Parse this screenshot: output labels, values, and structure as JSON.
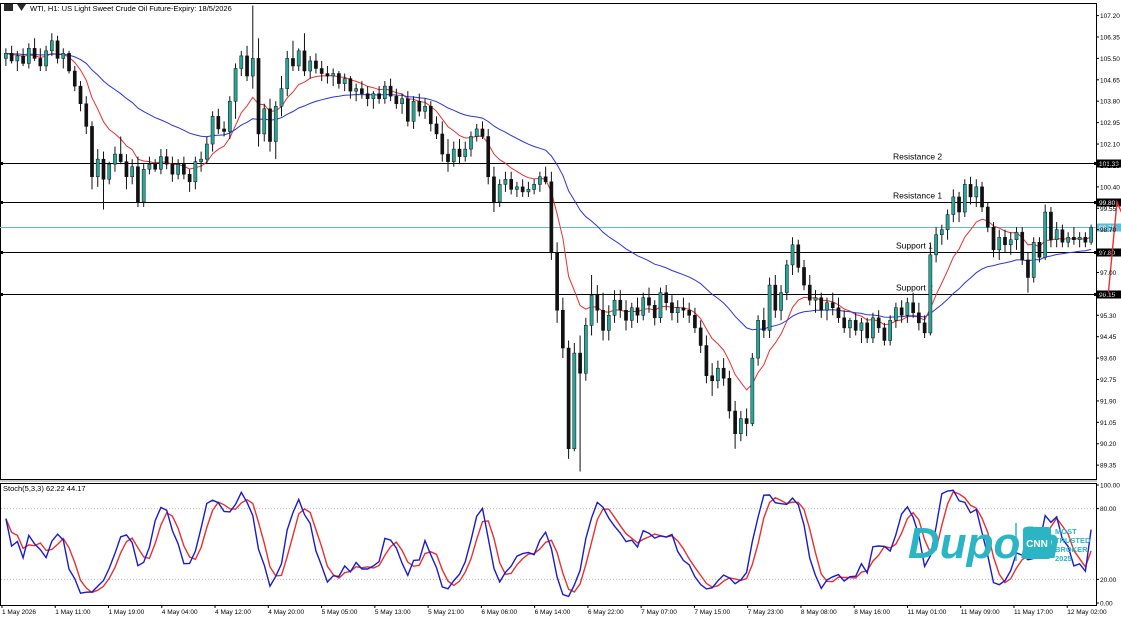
{
  "header": {
    "title": "WTI, H1: US Light Sweet Crude Oil Future-Expiry: 18/5/2026",
    "stoch_title": "Stoch(5,3,3) 62.22 44.17"
  },
  "watermark": {
    "brand": "Dupoin",
    "badge_text": "CNN",
    "award_lines": [
      "MOST",
      "TRUSTED",
      "BROKER",
      "2025"
    ],
    "color": "#2bb5c4"
  },
  "colors": {
    "bull": "#26a69a",
    "bear": "#111111",
    "ma_fast": "#e8312f",
    "ma_slow": "#2a35e0",
    "current_line": "#5fbcd3",
    "stoch_k": "#1a1ad0",
    "stoch_d": "#e8312f"
  },
  "chart_data": {
    "type": "candlestick",
    "title": "WTI, H1: US Light Sweet Crude Oil Future-Expiry: 18/5/2026",
    "ylim": [
      88.8,
      107.7
    ],
    "y_ticks": [
      "107.20",
      "106.35",
      "105.50",
      "104.65",
      "103.80",
      "102.95",
      "102.10",
      "101.25",
      "100.40",
      "99.55",
      "98.70",
      "97.80",
      "97.00",
      "96.15",
      "95.30",
      "94.45",
      "93.60",
      "92.75",
      "91.90",
      "91.05",
      "90.20",
      "89.35"
    ],
    "x_ticks": [
      "1 May 2026",
      "1 May 11:00",
      "1 May 19:00",
      "4 May 04:00",
      "4 May 12:00",
      "4 May 20:00",
      "5 May 05:00",
      "5 May 13:00",
      "5 May 21:00",
      "6 May 06:00",
      "6 May 14:00",
      "6 May 22:00",
      "7 May 07:00",
      "7 May 15:00",
      "7 May 23:00",
      "8 May 08:00",
      "8 May 16:00",
      "11 May 01:00",
      "11 May 09:00",
      "11 May 17:00",
      "12 May 02:00"
    ],
    "levels": [
      {
        "label": "Resistance 2",
        "value": 101.33,
        "tag": "101.33"
      },
      {
        "label": "Resistance 1",
        "value": 99.8,
        "tag": "99.80"
      },
      {
        "label": "Support 1",
        "value": 97.8,
        "tag": "97.80"
      },
      {
        "label": "Support 2",
        "value": 96.15,
        "tag": "96.15"
      }
    ],
    "current_price": {
      "value": 98.79,
      "tag": "98.79"
    },
    "trend_line": [
      [
        192,
        96.2
      ],
      [
        193.5,
        99.8
      ],
      [
        196,
        98.5
      ],
      [
        201,
        101.3
      ]
    ],
    "candles": [
      [
        105.5,
        105.9,
        105.2,
        105.7
      ],
      [
        105.7,
        106.0,
        105.3,
        105.4
      ],
      [
        105.4,
        105.8,
        105.0,
        105.6
      ],
      [
        105.6,
        105.9,
        105.2,
        105.3
      ],
      [
        105.3,
        106.1,
        105.1,
        105.9
      ],
      [
        105.9,
        106.3,
        105.4,
        105.5
      ],
      [
        105.5,
        105.9,
        105.0,
        105.2
      ],
      [
        105.2,
        106.0,
        105.0,
        105.8
      ],
      [
        105.8,
        106.5,
        105.6,
        106.2
      ],
      [
        106.2,
        106.4,
        105.3,
        105.5
      ],
      [
        105.5,
        105.9,
        105.1,
        105.7
      ],
      [
        105.7,
        105.8,
        104.9,
        105.0
      ],
      [
        105.0,
        105.2,
        104.2,
        104.4
      ],
      [
        104.4,
        104.6,
        103.4,
        103.7
      ],
      [
        103.7,
        104.0,
        102.5,
        102.8
      ],
      [
        102.8,
        103.0,
        100.3,
        100.8
      ],
      [
        100.8,
        101.9,
        100.4,
        101.5
      ],
      [
        101.5,
        101.8,
        99.5,
        100.7
      ],
      [
        100.7,
        101.4,
        100.5,
        101.3
      ],
      [
        101.3,
        102.0,
        101.0,
        101.7
      ],
      [
        101.7,
        102.4,
        101.3,
        101.4
      ],
      [
        101.4,
        101.7,
        100.3,
        100.8
      ],
      [
        100.8,
        101.5,
        100.5,
        101.2
      ],
      [
        101.2,
        101.6,
        99.6,
        99.8
      ],
      [
        99.8,
        101.3,
        99.6,
        101.1
      ],
      [
        101.1,
        101.6,
        100.9,
        101.3
      ],
      [
        101.3,
        101.5,
        101.0,
        101.1
      ],
      [
        101.1,
        101.9,
        100.9,
        101.6
      ],
      [
        101.6,
        101.9,
        101.1,
        101.3
      ],
      [
        101.3,
        101.6,
        100.6,
        100.9
      ],
      [
        100.9,
        101.5,
        100.7,
        101.3
      ],
      [
        101.3,
        101.6,
        100.7,
        100.9
      ],
      [
        100.9,
        101.1,
        100.2,
        100.6
      ],
      [
        100.6,
        101.6,
        100.3,
        101.4
      ],
      [
        101.4,
        101.8,
        101.0,
        101.5
      ],
      [
        101.5,
        102.4,
        101.3,
        102.1
      ],
      [
        102.1,
        103.4,
        101.8,
        103.2
      ],
      [
        103.2,
        103.5,
        102.5,
        102.7
      ],
      [
        102.7,
        103.0,
        102.4,
        102.6
      ],
      [
        102.6,
        104.0,
        102.3,
        103.8
      ],
      [
        103.8,
        105.3,
        103.1,
        105.1
      ],
      [
        105.1,
        105.8,
        104.8,
        105.6
      ],
      [
        105.6,
        106.0,
        104.6,
        104.8
      ],
      [
        104.8,
        107.6,
        104.3,
        105.5
      ],
      [
        105.5,
        106.3,
        102.0,
        102.5
      ],
      [
        102.5,
        103.7,
        102.2,
        103.5
      ],
      [
        103.5,
        103.9,
        101.8,
        102.2
      ],
      [
        102.2,
        103.8,
        101.5,
        103.6
      ],
      [
        103.6,
        104.8,
        103.2,
        104.3
      ],
      [
        104.3,
        105.8,
        104.0,
        105.5
      ],
      [
        105.5,
        106.2,
        105.0,
        105.2
      ],
      [
        105.2,
        105.9,
        105.0,
        105.8
      ],
      [
        105.8,
        106.5,
        104.8,
        105.0
      ],
      [
        105.0,
        105.6,
        104.7,
        105.4
      ],
      [
        105.4,
        105.7,
        104.9,
        105.1
      ],
      [
        105.1,
        105.4,
        104.6,
        104.9
      ],
      [
        104.9,
        105.2,
        104.5,
        104.8
      ],
      [
        104.8,
        105.1,
        104.4,
        104.9
      ],
      [
        104.9,
        105.0,
        104.3,
        104.5
      ],
      [
        104.5,
        104.9,
        104.2,
        104.7
      ],
      [
        104.7,
        104.8,
        103.9,
        104.2
      ],
      [
        104.2,
        104.5,
        103.8,
        104.3
      ],
      [
        104.3,
        104.6,
        103.9,
        104.1
      ],
      [
        104.1,
        104.4,
        103.6,
        103.9
      ],
      [
        103.9,
        104.2,
        103.5,
        104.1
      ],
      [
        104.1,
        104.4,
        103.7,
        103.9
      ],
      [
        103.9,
        104.6,
        103.7,
        104.4
      ],
      [
        104.4,
        104.7,
        103.8,
        104.0
      ],
      [
        104.0,
        104.3,
        103.5,
        103.7
      ],
      [
        103.7,
        104.1,
        103.3,
        103.9
      ],
      [
        103.9,
        104.2,
        102.8,
        103.0
      ],
      [
        103.0,
        104.0,
        102.7,
        103.8
      ],
      [
        103.8,
        104.1,
        103.2,
        103.4
      ],
      [
        103.4,
        103.9,
        103.1,
        103.6
      ],
      [
        103.6,
        103.8,
        102.6,
        102.9
      ],
      [
        102.9,
        103.2,
        102.3,
        102.5
      ],
      [
        102.5,
        103.0,
        101.4,
        101.7
      ],
      [
        101.7,
        102.3,
        101.0,
        101.4
      ],
      [
        101.4,
        102.2,
        101.2,
        101.9
      ],
      [
        101.9,
        102.3,
        101.3,
        101.6
      ],
      [
        101.6,
        102.2,
        101.4,
        101.9
      ],
      [
        101.9,
        102.6,
        101.6,
        102.4
      ],
      [
        102.4,
        102.9,
        102.2,
        102.7
      ],
      [
        102.7,
        103.0,
        102.3,
        102.4
      ],
      [
        102.4,
        102.7,
        100.5,
        100.8
      ],
      [
        100.8,
        101.2,
        99.4,
        99.8
      ],
      [
        99.8,
        100.7,
        99.6,
        100.5
      ],
      [
        100.5,
        101.0,
        100.2,
        100.7
      ],
      [
        100.7,
        101.0,
        100.1,
        100.3
      ],
      [
        100.3,
        100.6,
        100.0,
        100.4
      ],
      [
        100.4,
        100.7,
        100.0,
        100.2
      ],
      [
        100.2,
        100.6,
        100.0,
        100.3
      ],
      [
        100.3,
        100.7,
        100.1,
        100.5
      ],
      [
        100.5,
        101.0,
        100.2,
        100.8
      ],
      [
        100.8,
        101.2,
        100.5,
        100.6
      ],
      [
        100.6,
        101.0,
        97.5,
        97.8
      ],
      [
        97.8,
        98.2,
        95.0,
        95.5
      ],
      [
        95.5,
        96.0,
        93.6,
        94.0
      ],
      [
        94.0,
        94.3,
        89.6,
        90.0
      ],
      [
        90.0,
        94.2,
        89.9,
        93.8
      ],
      [
        93.8,
        94.5,
        89.1,
        93.0
      ],
      [
        93.0,
        95.2,
        92.7,
        94.9
      ],
      [
        94.9,
        96.9,
        94.5,
        96.1
      ],
      [
        96.1,
        96.5,
        95.0,
        95.5
      ],
      [
        95.5,
        96.2,
        94.3,
        94.7
      ],
      [
        94.7,
        95.7,
        94.3,
        95.3
      ],
      [
        95.3,
        96.3,
        95.0,
        95.9
      ],
      [
        95.9,
        96.3,
        95.2,
        95.5
      ],
      [
        95.5,
        95.9,
        94.7,
        95.1
      ],
      [
        95.1,
        95.8,
        94.8,
        95.6
      ],
      [
        95.6,
        96.0,
        95.0,
        95.3
      ],
      [
        95.3,
        96.2,
        95.1,
        96.0
      ],
      [
        96.0,
        96.4,
        95.4,
        95.7
      ],
      [
        95.7,
        95.9,
        94.9,
        95.2
      ],
      [
        95.2,
        96.4,
        95.0,
        96.2
      ],
      [
        96.2,
        96.5,
        95.5,
        95.8
      ],
      [
        95.8,
        96.1,
        95.1,
        95.4
      ],
      [
        95.4,
        95.9,
        95.0,
        95.6
      ],
      [
        95.6,
        96.0,
        95.2,
        95.5
      ],
      [
        95.5,
        95.8,
        95.0,
        95.3
      ],
      [
        95.3,
        95.6,
        94.6,
        94.8
      ],
      [
        94.8,
        95.1,
        93.8,
        94.1
      ],
      [
        94.1,
        94.5,
        92.6,
        92.9
      ],
      [
        92.9,
        93.4,
        92.1,
        92.7
      ],
      [
        92.7,
        93.5,
        92.4,
        93.2
      ],
      [
        93.2,
        93.6,
        92.5,
        92.8
      ],
      [
        92.8,
        93.1,
        91.2,
        91.5
      ],
      [
        91.5,
        91.9,
        90.0,
        90.6
      ],
      [
        90.6,
        91.5,
        90.3,
        91.2
      ],
      [
        91.2,
        91.6,
        90.5,
        91.0
      ],
      [
        91.0,
        93.8,
        90.9,
        93.6
      ],
      [
        93.6,
        95.3,
        93.3,
        95.1
      ],
      [
        95.1,
        95.6,
        94.4,
        94.7
      ],
      [
        94.7,
        96.8,
        94.4,
        96.5
      ],
      [
        96.5,
        96.9,
        95.2,
        95.5
      ],
      [
        95.5,
        96.5,
        95.1,
        96.2
      ],
      [
        96.2,
        97.5,
        95.9,
        97.3
      ],
      [
        97.3,
        98.4,
        96.9,
        98.1
      ],
      [
        98.1,
        98.3,
        97.0,
        97.2
      ],
      [
        97.2,
        97.5,
        96.3,
        96.5
      ],
      [
        96.5,
        96.9,
        95.7,
        95.9
      ],
      [
        95.9,
        96.3,
        95.4,
        96.0
      ],
      [
        96.0,
        96.2,
        95.2,
        95.5
      ],
      [
        95.5,
        96.0,
        95.1,
        95.8
      ],
      [
        95.8,
        96.2,
        95.3,
        95.6
      ],
      [
        95.6,
        96.0,
        95.0,
        95.2
      ],
      [
        95.2,
        95.5,
        94.6,
        94.8
      ],
      [
        94.8,
        95.2,
        94.4,
        95.1
      ],
      [
        95.1,
        95.4,
        94.5,
        94.7
      ],
      [
        94.7,
        95.2,
        94.2,
        95.0
      ],
      [
        95.0,
        95.2,
        94.2,
        94.4
      ],
      [
        94.4,
        95.4,
        94.2,
        95.2
      ],
      [
        95.2,
        95.5,
        94.6,
        94.8
      ],
      [
        94.8,
        95.0,
        94.1,
        94.3
      ],
      [
        94.3,
        95.3,
        94.1,
        95.1
      ],
      [
        95.1,
        95.8,
        94.8,
        95.6
      ],
      [
        95.6,
        95.9,
        95.0,
        95.3
      ],
      [
        95.3,
        96.0,
        95.0,
        95.8
      ],
      [
        95.8,
        96.2,
        95.2,
        95.4
      ],
      [
        95.4,
        95.8,
        94.7,
        95.0
      ],
      [
        95.0,
        95.3,
        94.4,
        94.6
      ],
      [
        94.6,
        98.1,
        94.5,
        97.7
      ],
      [
        97.7,
        98.8,
        97.4,
        98.5
      ],
      [
        98.5,
        98.9,
        98.1,
        98.7
      ],
      [
        98.7,
        99.5,
        98.3,
        99.3
      ],
      [
        99.3,
        100.3,
        99.0,
        100.0
      ],
      [
        100.0,
        100.2,
        99.0,
        99.4
      ],
      [
        99.4,
        100.7,
        99.2,
        100.5
      ],
      [
        100.5,
        100.8,
        99.7,
        100.0
      ],
      [
        100.0,
        100.7,
        99.6,
        100.4
      ],
      [
        100.4,
        100.6,
        99.4,
        99.6
      ],
      [
        99.6,
        99.8,
        98.6,
        98.8
      ],
      [
        98.8,
        99.0,
        97.6,
        97.9
      ],
      [
        97.9,
        98.7,
        97.5,
        98.4
      ],
      [
        98.4,
        98.7,
        97.8,
        98.1
      ],
      [
        98.1,
        98.6,
        97.7,
        98.3
      ],
      [
        98.3,
        98.8,
        97.9,
        98.6
      ],
      [
        98.6,
        98.8,
        97.3,
        97.5
      ],
      [
        97.5,
        97.8,
        96.2,
        96.8
      ],
      [
        96.8,
        98.4,
        96.6,
        98.2
      ],
      [
        98.2,
        98.4,
        97.4,
        97.6
      ],
      [
        97.6,
        99.7,
        97.5,
        99.4
      ],
      [
        99.4,
        99.6,
        98.0,
        98.3
      ],
      [
        98.3,
        99.0,
        98.0,
        98.7
      ],
      [
        98.7,
        98.9,
        98.0,
        98.2
      ],
      [
        98.2,
        98.6,
        98.0,
        98.4
      ],
      [
        98.4,
        98.8,
        98.1,
        98.3
      ],
      [
        98.3,
        98.6,
        98.0,
        98.4
      ],
      [
        98.4,
        98.6,
        98.0,
        98.2
      ],
      [
        98.2,
        98.9,
        98.1,
        98.79
      ]
    ],
    "stoch": {
      "name": "Stoch(5,3,3)",
      "k_value": 62.22,
      "d_value": 44.17,
      "ylim": [
        0,
        100
      ],
      "y_ticks": [
        "100.00",
        "80.00",
        "20.00",
        "0.00"
      ],
      "levels": [
        80,
        20
      ]
    }
  }
}
